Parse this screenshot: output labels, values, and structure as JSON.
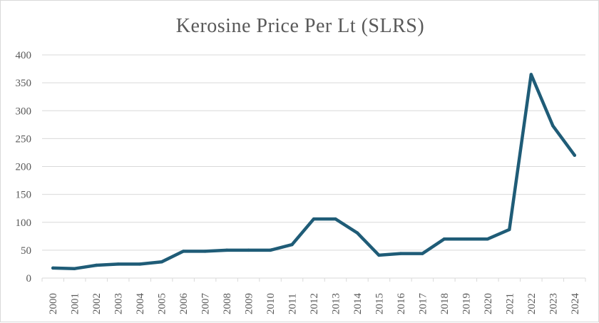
{
  "chart_data": {
    "type": "line",
    "title": "Kerosine Price Per Lt (SLRS)",
    "xlabel": "",
    "ylabel": "",
    "categories": [
      "2000",
      "2001",
      "2002",
      "2003",
      "2004",
      "2005",
      "2006",
      "2007",
      "2008",
      "2009",
      "2010",
      "2011",
      "2012",
      "2013",
      "2014",
      "2015",
      "2016",
      "2017",
      "2018",
      "2019",
      "2020",
      "2021",
      "2022",
      "2023",
      "2024"
    ],
    "series": [
      {
        "values": [
          18,
          17,
          23,
          25,
          25,
          29,
          48,
          48,
          50,
          50,
          50,
          60,
          106,
          106,
          81,
          41,
          44,
          44,
          70,
          70,
          70,
          87,
          365,
          273,
          220
        ]
      }
    ],
    "ylim": [
      0,
      400
    ],
    "yticks": [
      0,
      50,
      100,
      150,
      200,
      250,
      300,
      350,
      400
    ],
    "grid": true,
    "legend": "none",
    "line_color": "#1f5c77",
    "grid_color": "#d9d9d9"
  }
}
